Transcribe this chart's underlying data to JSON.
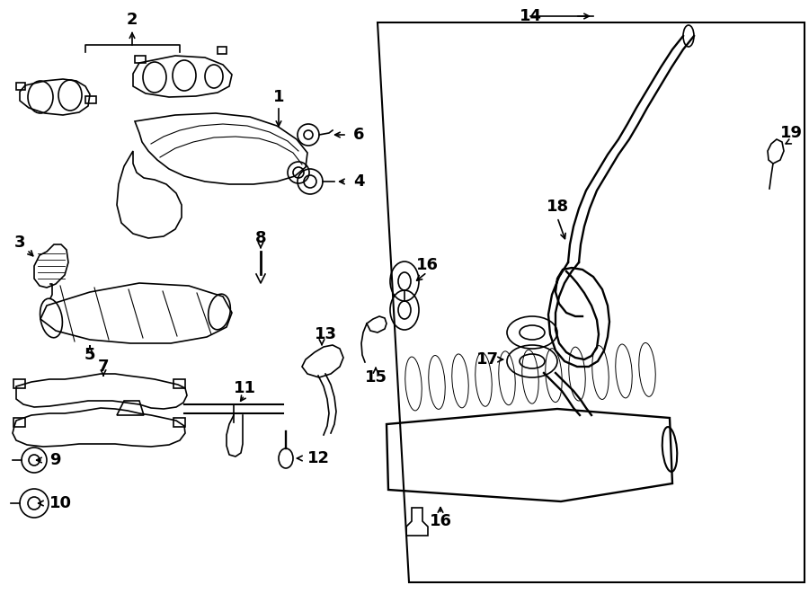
{
  "bg_color": "#ffffff",
  "lc": "#000000",
  "lw": 1.2,
  "figw": 9.0,
  "figh": 6.61,
  "dpi": 100,
  "xlim": [
    0,
    900
  ],
  "ylim": [
    0,
    661
  ]
}
